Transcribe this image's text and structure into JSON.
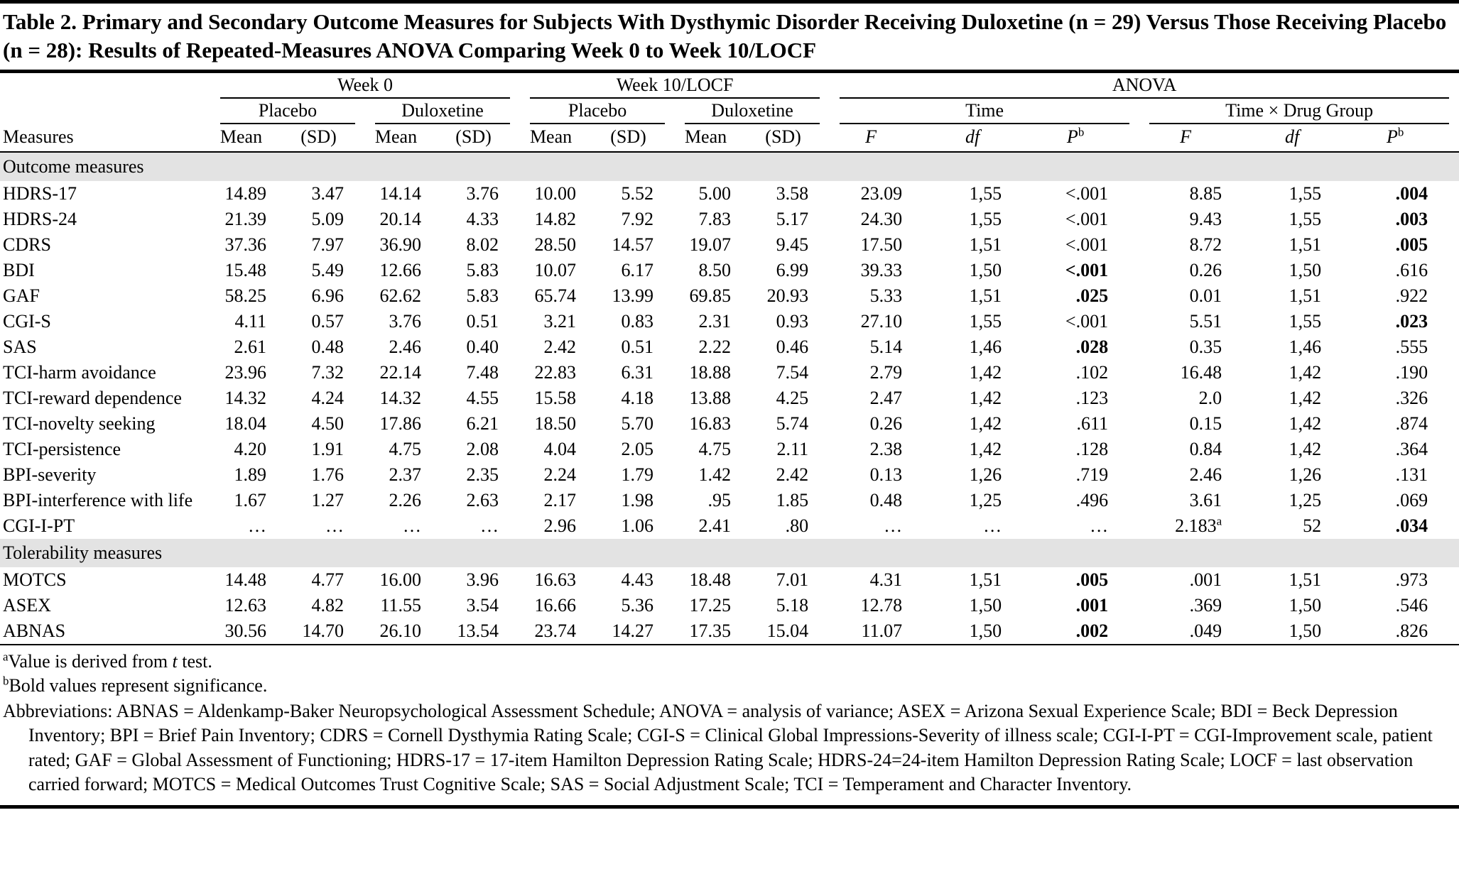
{
  "title": "Table 2. Primary and Secondary Outcome Measures for Subjects With Dysthymic Disorder Receiving Duloxetine (n = 29) Versus Those Receiving Placebo (n = 28): Results of Repeated-Measures ANOVA Comparing Week 0 to Week 10/LOCF",
  "header": {
    "measures_label": "Measures",
    "mean_label": "Mean",
    "sd_label": "(SD)",
    "f_label": "F",
    "df_label": "df",
    "p_label": "P",
    "p_sup": "b",
    "groups": [
      {
        "label": "Week 0",
        "subgroups": [
          {
            "label": "Placebo"
          },
          {
            "label": "Duloxetine"
          }
        ]
      },
      {
        "label": "Week 10/LOCF",
        "subgroups": [
          {
            "label": "Placebo"
          },
          {
            "label": "Duloxetine"
          }
        ]
      },
      {
        "label": "ANOVA",
        "subgroups": [
          {
            "label": "Time"
          },
          {
            "label": "Time × Drug Group"
          }
        ]
      }
    ]
  },
  "sections": [
    {
      "label": "Outcome measures",
      "rows": [
        {
          "measure": "HDRS-17",
          "cells": [
            "14.89",
            "3.47",
            "14.14",
            "3.76",
            "10.00",
            "5.52",
            "5.00",
            "3.58",
            "23.09",
            "1,55",
            "<.001",
            "8.85",
            "1,55",
            ".004"
          ],
          "bold": [
            13
          ]
        },
        {
          "measure": "HDRS-24",
          "cells": [
            "21.39",
            "5.09",
            "20.14",
            "4.33",
            "14.82",
            "7.92",
            "7.83",
            "5.17",
            "24.30",
            "1,55",
            "<.001",
            "9.43",
            "1,55",
            ".003"
          ],
          "bold": [
            13
          ]
        },
        {
          "measure": "CDRS",
          "cells": [
            "37.36",
            "7.97",
            "36.90",
            "8.02",
            "28.50",
            "14.57",
            "19.07",
            "9.45",
            "17.50",
            "1,51",
            "<.001",
            "8.72",
            "1,51",
            ".005"
          ],
          "bold": [
            13
          ]
        },
        {
          "measure": "BDI",
          "cells": [
            "15.48",
            "5.49",
            "12.66",
            "5.83",
            "10.07",
            "6.17",
            "8.50",
            "6.99",
            "39.33",
            "1,50",
            "<.001",
            "0.26",
            "1,50",
            ".616"
          ],
          "bold": [
            10
          ]
        },
        {
          "measure": "GAF",
          "cells": [
            "58.25",
            "6.96",
            "62.62",
            "5.83",
            "65.74",
            "13.99",
            "69.85",
            "20.93",
            "5.33",
            "1,51",
            ".025",
            "0.01",
            "1,51",
            ".922"
          ],
          "bold": [
            10
          ]
        },
        {
          "measure": "CGI-S",
          "cells": [
            "4.11",
            "0.57",
            "3.76",
            "0.51",
            "3.21",
            "0.83",
            "2.31",
            "0.93",
            "27.10",
            "1,55",
            "<.001",
            "5.51",
            "1,55",
            ".023"
          ],
          "bold": [
            13
          ]
        },
        {
          "measure": "SAS",
          "cells": [
            "2.61",
            "0.48",
            "2.46",
            "0.40",
            "2.42",
            "0.51",
            "2.22",
            "0.46",
            "5.14",
            "1,46",
            ".028",
            "0.35",
            "1,46",
            ".555"
          ],
          "bold": [
            10
          ]
        },
        {
          "measure": "TCI-harm avoidance",
          "cells": [
            "23.96",
            "7.32",
            "22.14",
            "7.48",
            "22.83",
            "6.31",
            "18.88",
            "7.54",
            "2.79",
            "1,42",
            ".102",
            "16.48",
            "1,42",
            ".190"
          ],
          "bold": []
        },
        {
          "measure": "TCI-reward dependence",
          "cells": [
            "14.32",
            "4.24",
            "14.32",
            "4.55",
            "15.58",
            "4.18",
            "13.88",
            "4.25",
            "2.47",
            "1,42",
            ".123",
            "2.0",
            "1,42",
            ".326"
          ],
          "bold": []
        },
        {
          "measure": "TCI-novelty seeking",
          "cells": [
            "18.04",
            "4.50",
            "17.86",
            "6.21",
            "18.50",
            "5.70",
            "16.83",
            "5.74",
            "0.26",
            "1,42",
            ".611",
            "0.15",
            "1,42",
            ".874"
          ],
          "bold": []
        },
        {
          "measure": "TCI-persistence",
          "cells": [
            "4.20",
            "1.91",
            "4.75",
            "2.08",
            "4.04",
            "2.05",
            "4.75",
            "2.11",
            "2.38",
            "1,42",
            ".128",
            "0.84",
            "1,42",
            ".364"
          ],
          "bold": []
        },
        {
          "measure": "BPI-severity",
          "cells": [
            "1.89",
            "1.76",
            "2.37",
            "2.35",
            "2.24",
            "1.79",
            "1.42",
            "2.42",
            "0.13",
            "1,26",
            ".719",
            "2.46",
            "1,26",
            ".131"
          ],
          "bold": []
        },
        {
          "measure": "BPI-interference with life",
          "cells": [
            "1.67",
            "1.27",
            "2.26",
            "2.63",
            "2.17",
            "1.98",
            ".95",
            "1.85",
            "0.48",
            "1,25",
            ".496",
            "3.61",
            "1,25",
            ".069"
          ],
          "bold": []
        },
        {
          "measure": "CGI-I-PT",
          "cells": [
            "…",
            "…",
            "…",
            "…",
            "2.96",
            "1.06",
            "2.41",
            ".80",
            "…",
            "…",
            "…",
            "2.183^a",
            "52",
            ".034"
          ],
          "bold": [
            13
          ]
        }
      ]
    },
    {
      "label": "Tolerability measures",
      "rows": [
        {
          "measure": "MOTCS",
          "cells": [
            "14.48",
            "4.77",
            "16.00",
            "3.96",
            "16.63",
            "4.43",
            "18.48",
            "7.01",
            "4.31",
            "1,51",
            ".005",
            ".001",
            "1,51",
            ".973"
          ],
          "bold": [
            10
          ]
        },
        {
          "measure": "ASEX",
          "cells": [
            "12.63",
            "4.82",
            "11.55",
            "3.54",
            "16.66",
            "5.36",
            "17.25",
            "5.18",
            "12.78",
            "1,50",
            ".001",
            ".369",
            "1,50",
            ".546"
          ],
          "bold": [
            10
          ]
        },
        {
          "measure": "ABNAS",
          "cells": [
            "30.56",
            "14.70",
            "26.10",
            "13.54",
            "23.74",
            "14.27",
            "17.35",
            "15.04",
            "11.07",
            "1,50",
            ".002",
            ".049",
            "1,50",
            ".826"
          ],
          "bold": [
            10
          ]
        }
      ]
    }
  ],
  "footnotes": [
    {
      "sup": "a",
      "pre": "Value is derived from ",
      "em": "t",
      "post": " test."
    },
    {
      "sup": "b",
      "pre": "Bold values represent significance.",
      "em": "",
      "post": ""
    }
  ],
  "abbreviations": "Abbreviations: ABNAS = Aldenkamp-Baker Neuropsychological Assessment Schedule; ANOVA = analysis of variance; ASEX = Arizona Sexual Experience Scale; BDI = Beck Depression Inventory; BPI = Brief Pain Inventory; CDRS = Cornell Dysthymia Rating Scale; CGI-S = Clinical Global Impressions-Severity of illness scale; CGI-I-PT = CGI-Improvement scale, patient rated; GAF = Global Assessment of Functioning; HDRS-17 = 17-item Hamilton Depression Rating Scale; HDRS-24=24-item Hamilton Depression Rating Scale; LOCF = last observation carried forward; MOTCS = Medical Outcomes Trust Cognitive Scale; SAS = Social Adjustment Scale; TCI = Temperament and Character Inventory."
}
